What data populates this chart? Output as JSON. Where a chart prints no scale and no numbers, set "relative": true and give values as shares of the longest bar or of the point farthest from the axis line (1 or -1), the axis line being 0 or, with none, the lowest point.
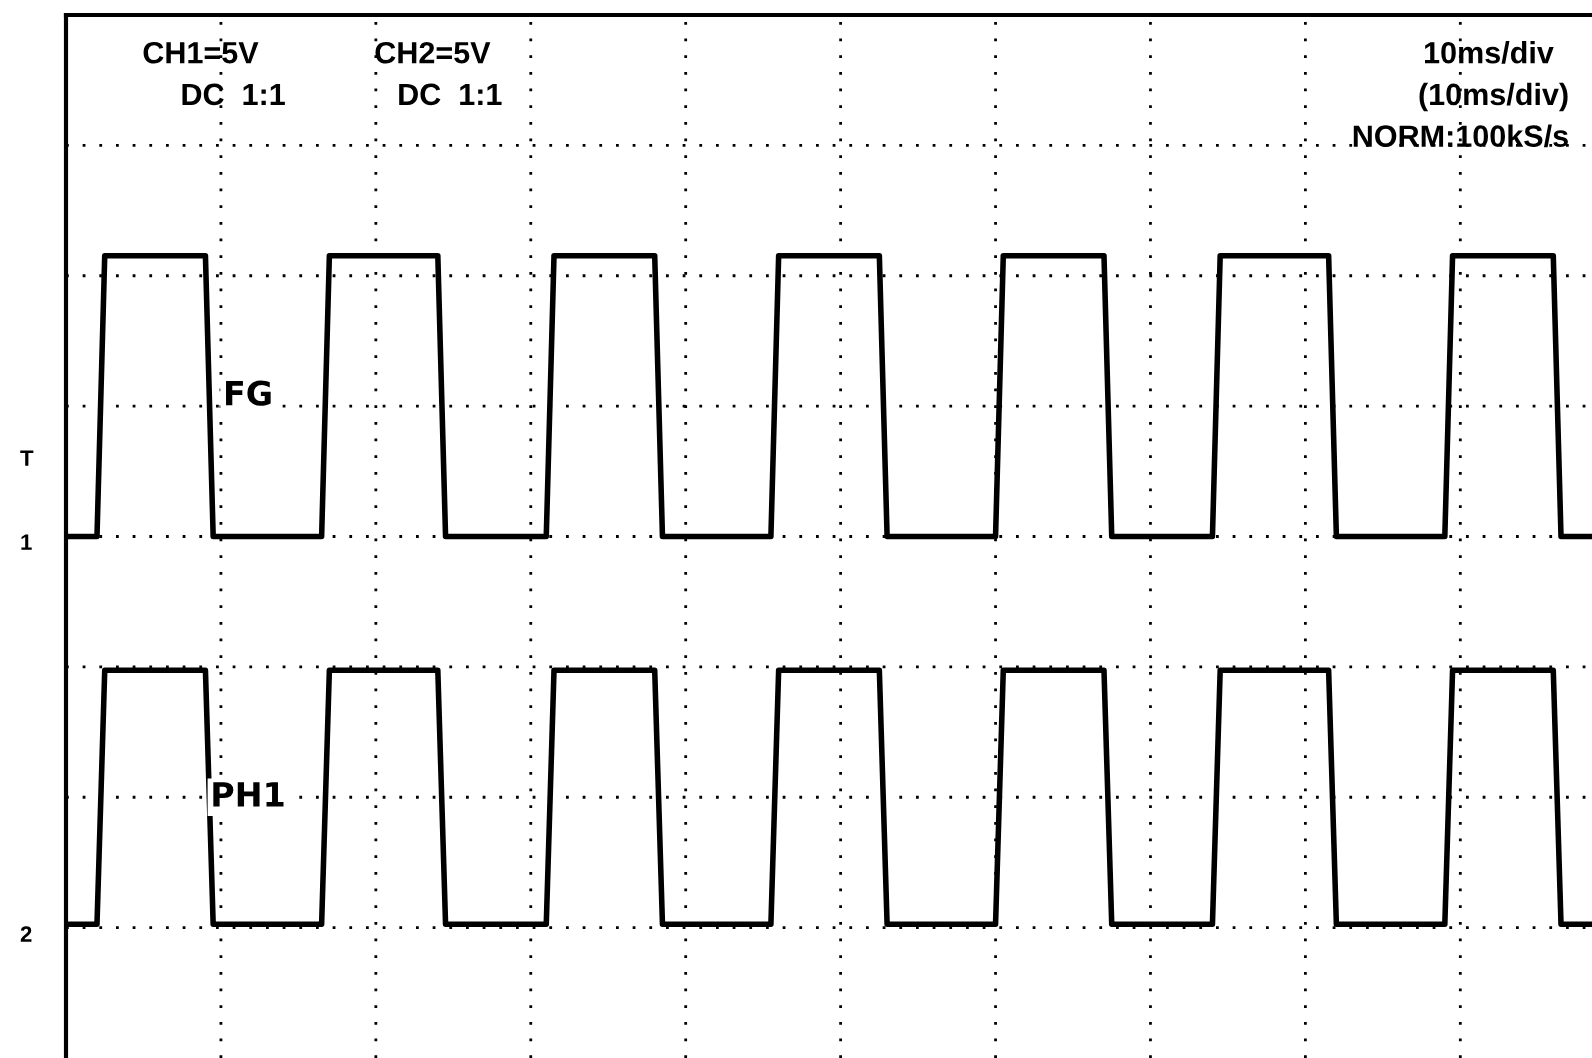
{
  "chart_data": {
    "type": "line",
    "relative": true,
    "categories": [
      null,
      null,
      null,
      null,
      null,
      null,
      null,
      null,
      null,
      null,
      null,
      null,
      null,
      null,
      null,
      null,
      null,
      null,
      null,
      null,
      null,
      null,
      null,
      null,
      null,
      null,
      null,
      null,
      null,
      null,
      null,
      null,
      null,
      null,
      null,
      null,
      null,
      null,
      null,
      null,
      null,
      null,
      null,
      null,
      null,
      null,
      null,
      null,
      null,
      null,
      null,
      null,
      null,
      null,
      null,
      null,
      null,
      null,
      null,
      null,
      null,
      null,
      null,
      null,
      null,
      null,
      null,
      null,
      null,
      null,
      null,
      null,
      null,
      null,
      null,
      null,
      null,
      null,
      null,
      null,
      null,
      null,
      null,
      null,
      null,
      null,
      null,
      null,
      null,
      null,
      null,
      null,
      null,
      null,
      null,
      null,
      null,
      null,
      null,
      null,
      null,
      null,
      null,
      null,
      null,
      null,
      null,
      null,
      null,
      null,
      null,
      null,
      null,
      null,
      null,
      null,
      null,
      null,
      null,
      null,
      null,
      null,
      null,
      null,
      null,
      null,
      null,
      null,
      null,
      null,
      null,
      null,
      null,
      null,
      null,
      null,
      null,
      null,
      null,
      null,
      null,
      null,
      null,
      null,
      null,
      null,
      null,
      null,
      null,
      null,
      null,
      null,
      null,
      null,
      null,
      null,
      null,
      null,
      null,
      null,
      null,
      null,
      null,
      null,
      null,
      null,
      null,
      null,
      null,
      null,
      null,
      null,
      null,
      null,
      null,
      null,
      null,
      null,
      null,
      null,
      null,
      null,
      null,
      null,
      null,
      null,
      null,
      null,
      null,
      null,
      null,
      null,
      null,
      null,
      null,
      null,
      null,
      null
    ],
    "series": [
      {
        "name": "FG",
        "color": "#000000",
        "values": [
          0.58,
          0.58,
          0.58,
          0.58,
          0.58,
          1,
          1,
          1,
          1,
          1,
          1,
          1,
          1,
          1,
          1,
          1,
          1,
          1,
          1,
          0.58,
          0.58,
          0.58,
          0.58,
          0.58,
          0.58,
          0.58,
          0.58,
          0.58,
          0.58,
          0.58,
          0.58,
          0.58,
          0.58,
          0.58,
          1,
          1,
          1,
          1,
          1,
          1,
          1,
          1,
          1,
          1,
          1,
          1,
          1,
          1,
          1,
          0.58,
          0.58,
          0.58,
          0.58,
          0.58,
          0.58,
          0.58,
          0.58,
          0.58,
          0.58,
          0.58,
          0.58,
          0.58,
          0.58,
          1,
          1,
          1,
          1,
          1,
          1,
          1,
          1,
          1,
          1,
          1,
          1,
          1,
          1,
          0.58,
          0.58,
          0.58,
          0.58,
          0.58,
          0.58,
          0.58,
          0.58,
          0.58,
          0.58,
          0.58,
          0.58,
          0.58,
          0.58,
          0.58,
          1,
          1,
          1,
          1,
          1,
          1,
          1,
          1,
          1,
          1,
          1,
          1,
          1,
          1,
          0.58,
          0.58,
          0.58,
          0.58,
          0.58,
          0.58,
          0.58,
          0.58,
          0.58,
          0.58,
          0.58,
          0.58,
          0.58,
          0.58,
          0.58,
          1,
          1,
          1,
          1,
          1,
          1,
          1,
          1,
          1,
          1,
          1,
          1,
          1,
          1,
          0.58,
          0.58,
          0.58,
          0.58,
          0.58,
          0.58,
          0.58,
          0.58,
          0.58,
          0.58,
          0.58,
          0.58,
          0.58,
          0.58,
          1,
          1,
          1,
          1,
          1,
          1,
          1,
          1,
          1,
          1,
          1,
          1,
          1,
          1,
          1,
          0.58,
          0.58,
          0.58,
          0.58,
          0.58,
          0.58,
          0.58,
          0.58,
          0.58,
          0.58,
          0.58,
          0.58,
          0.58,
          0.58,
          0.58,
          1,
          1,
          1,
          1,
          1,
          1,
          1,
          1,
          1,
          1,
          1,
          1,
          1,
          1,
          0.58,
          0.58,
          0.58,
          0.58,
          0.58
        ]
      },
      {
        "name": "PH1",
        "color": "#000000",
        "values": [
          0,
          0,
          0,
          0,
          0,
          0.38,
          0.38,
          0.38,
          0.38,
          0.38,
          0.38,
          0.38,
          0.38,
          0.38,
          0.38,
          0.38,
          0.38,
          0.38,
          0.38,
          0,
          0,
          0,
          0,
          0,
          0,
          0,
          0,
          0,
          0,
          0,
          0,
          0,
          0,
          0,
          0.38,
          0.38,
          0.38,
          0.38,
          0.38,
          0.38,
          0.38,
          0.38,
          0.38,
          0.38,
          0.38,
          0.38,
          0.38,
          0.38,
          0.38,
          0,
          0,
          0,
          0,
          0,
          0,
          0,
          0,
          0,
          0,
          0,
          0,
          0,
          0,
          0.38,
          0.38,
          0.38,
          0.38,
          0.38,
          0.38,
          0.38,
          0.38,
          0.38,
          0.38,
          0.38,
          0.38,
          0.38,
          0.38,
          0,
          0,
          0,
          0,
          0,
          0,
          0,
          0,
          0,
          0,
          0,
          0,
          0,
          0,
          0,
          0.38,
          0.38,
          0.38,
          0.38,
          0.38,
          0.38,
          0.38,
          0.38,
          0.38,
          0.38,
          0.38,
          0.38,
          0.38,
          0.38,
          0,
          0,
          0,
          0,
          0,
          0,
          0,
          0,
          0,
          0,
          0,
          0,
          0,
          0,
          0,
          0.38,
          0.38,
          0.38,
          0.38,
          0.38,
          0.38,
          0.38,
          0.38,
          0.38,
          0.38,
          0.38,
          0.38,
          0.38,
          0.38,
          0,
          0,
          0,
          0,
          0,
          0,
          0,
          0,
          0,
          0,
          0,
          0,
          0,
          0,
          0.38,
          0.38,
          0.38,
          0.38,
          0.38,
          0.38,
          0.38,
          0.38,
          0.38,
          0.38,
          0.38,
          0.38,
          0.38,
          0.38,
          0.38,
          0,
          0,
          0,
          0,
          0,
          0,
          0,
          0,
          0,
          0,
          0,
          0,
          0,
          0,
          0,
          0.38,
          0.38,
          0.38,
          0.38,
          0.38,
          0.38,
          0.38,
          0.38,
          0.38,
          0.38,
          0.38,
          0.38,
          0.38,
          0.38,
          0,
          0,
          0,
          0,
          0
        ]
      }
    ],
    "grid": true,
    "line_style": "solid",
    "annotations": [
      "CH1=5V",
      "DC  1:1",
      "CH2=5V",
      "DC  1:1",
      "10ms/div",
      "(10ms/div)",
      "NORM:100kS/s",
      "T",
      "1",
      "2"
    ]
  }
}
